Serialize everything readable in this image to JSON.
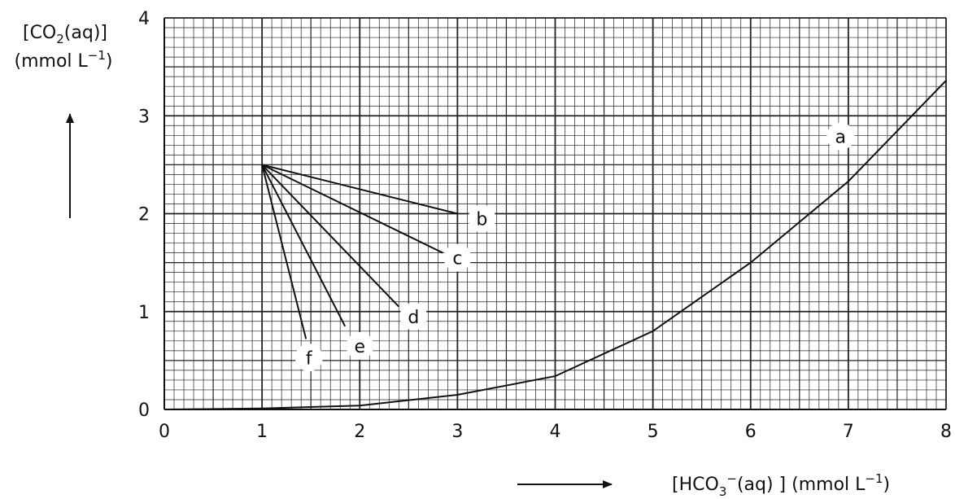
{
  "chart_data": {
    "type": "line",
    "xlim": [
      0,
      8
    ],
    "ylim": [
      0,
      4
    ],
    "x_ticks": [
      "0",
      "1",
      "2",
      "3",
      "4",
      "5",
      "6",
      "7",
      "8"
    ],
    "y_ticks": [
      "0",
      "1",
      "2",
      "3",
      "4"
    ],
    "grid": true,
    "minor_grid_step_x": 0.1,
    "minor_grid_step_y": 0.1,
    "xlabel": {
      "prefix": "[HCO",
      "sub": "3",
      "sup": "−",
      "mid": "(aq) ] (mmol L",
      "sup2": "−1",
      "suffix": ")"
    },
    "ylabel": {
      "line1_prefix": "[CO",
      "line1_sub": "2",
      "line1_suffix": "(aq)]",
      "line2_prefix": "(mmol L",
      "line2_sup": "−1",
      "line2_suffix": ")"
    },
    "series": [
      {
        "name": "a",
        "type": "curve",
        "points": [
          [
            0,
            0
          ],
          [
            1,
            0.01
          ],
          [
            2,
            0.04
          ],
          [
            3,
            0.15
          ],
          [
            4,
            0.34
          ],
          [
            5,
            0.8
          ],
          [
            6,
            1.5
          ],
          [
            7,
            2.33
          ],
          [
            8,
            3.36
          ]
        ],
        "label_at": [
          6.92,
          2.79
        ]
      },
      {
        "name": "b",
        "type": "segment",
        "points": [
          [
            1,
            2.5
          ],
          [
            3,
            2.0
          ]
        ],
        "label_at": [
          3.25,
          1.95
        ]
      },
      {
        "name": "c",
        "type": "segment",
        "points": [
          [
            1,
            2.5
          ],
          [
            2.85,
            1.6
          ]
        ],
        "label_at": [
          3.0,
          1.55
        ]
      },
      {
        "name": "d",
        "type": "segment",
        "points": [
          [
            1,
            2.5
          ],
          [
            2.4,
            1.05
          ]
        ],
        "label_at": [
          2.55,
          0.95
        ]
      },
      {
        "name": "e",
        "type": "segment",
        "points": [
          [
            1,
            2.5
          ],
          [
            1.85,
            0.85
          ]
        ],
        "label_at": [
          2.0,
          0.65
        ]
      },
      {
        "name": "f",
        "type": "segment",
        "points": [
          [
            1,
            2.5
          ],
          [
            1.45,
            0.72
          ]
        ],
        "label_at": [
          1.48,
          0.53
        ]
      }
    ]
  }
}
